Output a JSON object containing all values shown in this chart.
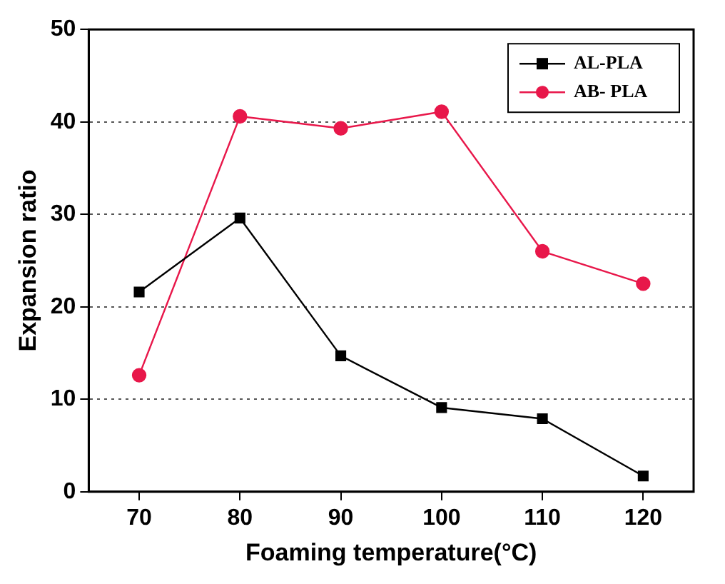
{
  "chart_data": {
    "type": "line",
    "xlabel": "Foaming temperature(°C)",
    "ylabel": "Expansion ratio",
    "x": [
      70,
      80,
      90,
      100,
      110,
      120
    ],
    "series": [
      {
        "name": "AL-PLA",
        "color": "#000000",
        "marker": "square",
        "values": [
          21.6,
          29.6,
          14.7,
          9.1,
          7.9,
          1.7
        ]
      },
      {
        "name": "AB- PLA",
        "color": "#e8174a",
        "marker": "circle",
        "values": [
          12.6,
          40.6,
          39.3,
          41.1,
          26.0,
          22.5
        ]
      }
    ],
    "xlim": [
      65,
      125
    ],
    "xticks": [
      70,
      80,
      90,
      100,
      110,
      120
    ],
    "ylim": [
      0,
      50
    ],
    "yticks": [
      0,
      10,
      20,
      30,
      40,
      50
    ],
    "grid": "y",
    "legend": "top right",
    "line_style": "solid"
  }
}
